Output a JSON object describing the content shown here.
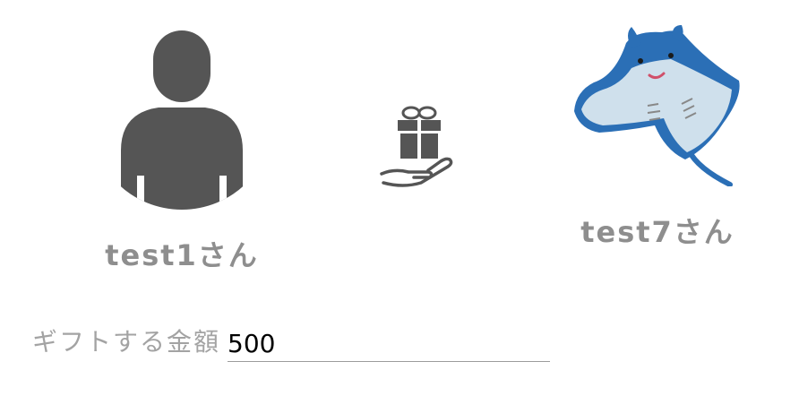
{
  "sender": {
    "name": "test1さん",
    "avatar_icon": "user-silhouette-icon"
  },
  "gift": {
    "icon": "gift-in-hand-icon"
  },
  "receiver": {
    "name": "test7さん",
    "avatar_icon": "manta-ray-icon"
  },
  "amount": {
    "label": "ギフトする金額",
    "value": "500"
  },
  "colors": {
    "avatar_gray": "#555555",
    "name_gray": "#8e8e8e",
    "label_gray": "#a3a3a3",
    "manta_blue": "#2b6fb6",
    "manta_belly": "#cfe0ec"
  }
}
